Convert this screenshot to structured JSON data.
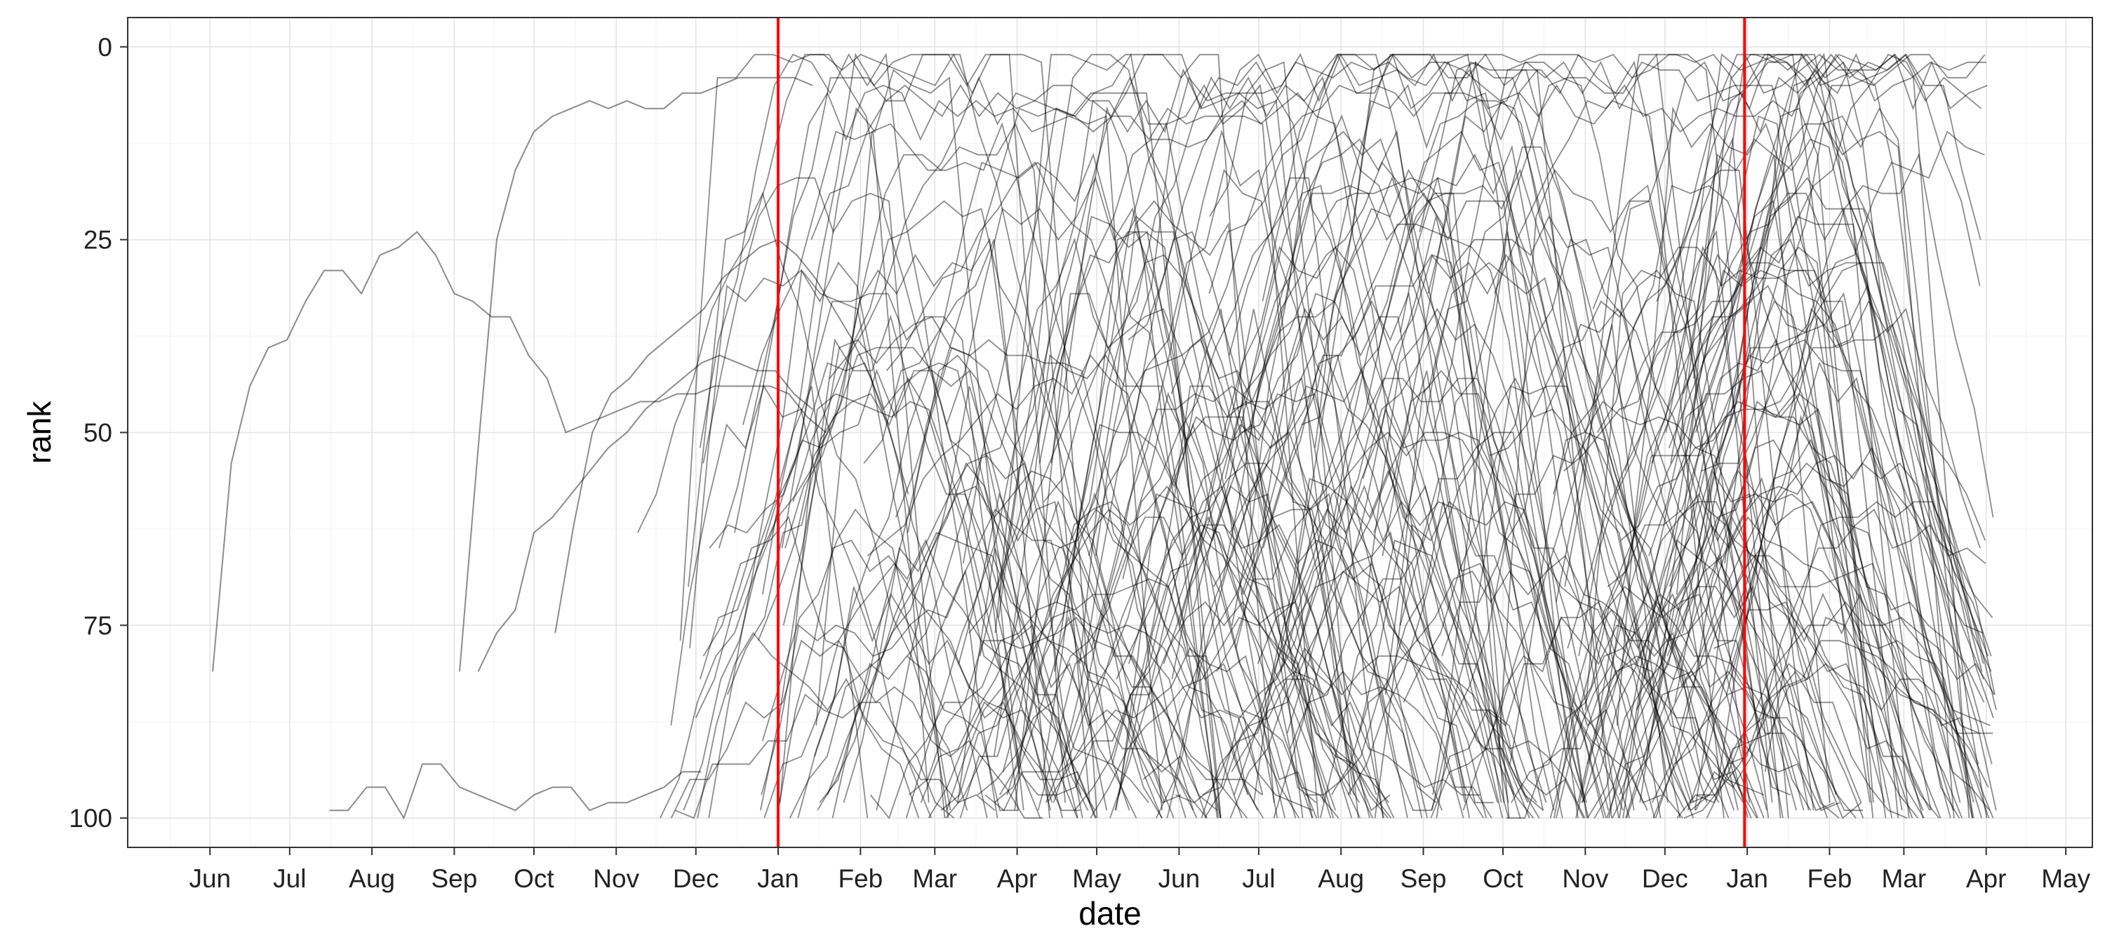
{
  "chart_data": {
    "type": "line",
    "xlabel": "date",
    "ylabel": "rank",
    "y_reversed": true,
    "ylim": [
      103.8,
      -3.8
    ],
    "xlim": [
      "2013-05-01",
      "2015-05-11"
    ],
    "y_ticks": [
      0,
      25,
      50,
      75,
      100
    ],
    "x_ticks": [
      {
        "label": "Jun",
        "date": "2013-06-01"
      },
      {
        "label": "Jul",
        "date": "2013-07-01"
      },
      {
        "label": "Aug",
        "date": "2013-08-01"
      },
      {
        "label": "Sep",
        "date": "2013-09-01"
      },
      {
        "label": "Oct",
        "date": "2013-10-01"
      },
      {
        "label": "Nov",
        "date": "2013-11-01"
      },
      {
        "label": "Dec",
        "date": "2013-12-01"
      },
      {
        "label": "Jan",
        "date": "2014-01-01"
      },
      {
        "label": "Feb",
        "date": "2014-02-01"
      },
      {
        "label": "Mar",
        "date": "2014-03-01"
      },
      {
        "label": "Apr",
        "date": "2014-04-01"
      },
      {
        "label": "May",
        "date": "2014-05-01"
      },
      {
        "label": "Jun",
        "date": "2014-06-01"
      },
      {
        "label": "Jul",
        "date": "2014-07-01"
      },
      {
        "label": "Aug",
        "date": "2014-08-01"
      },
      {
        "label": "Sep",
        "date": "2014-09-01"
      },
      {
        "label": "Oct",
        "date": "2014-10-01"
      },
      {
        "label": "Nov",
        "date": "2014-11-01"
      },
      {
        "label": "Dec",
        "date": "2014-12-01"
      },
      {
        "label": "Jan",
        "date": "2015-01-01"
      },
      {
        "label": "Feb",
        "date": "2015-02-01"
      },
      {
        "label": "Mar",
        "date": "2015-03-01"
      },
      {
        "label": "Apr",
        "date": "2015-04-01"
      },
      {
        "label": "May",
        "date": "2015-05-01"
      }
    ],
    "reference_lines": [
      {
        "x": "2014-01-01",
        "color": "#ff0000"
      },
      {
        "x": "2014-12-31",
        "color": "#ff0000"
      }
    ],
    "series_color": "#000000",
    "series_opacity": 0.45,
    "grid": true,
    "series": [
      {
        "x": [
          "2013-06-02",
          "2013-06-09",
          "2013-06-16",
          "2013-06-23",
          "2013-06-30",
          "2013-07-07",
          "2013-07-14",
          "2013-07-21",
          "2013-07-28",
          "2013-08-04",
          "2013-08-11",
          "2013-08-18",
          "2013-08-25",
          "2013-09-01",
          "2013-09-08",
          "2013-09-15",
          "2013-09-22",
          "2013-09-29",
          "2013-10-06",
          "2013-10-13",
          "2013-10-20",
          "2013-10-27",
          "2013-11-03",
          "2013-11-10",
          "2013-11-17",
          "2013-11-24",
          "2013-12-01",
          "2013-12-08",
          "2013-12-15",
          "2013-12-22",
          "2013-12-29",
          "2014-01-05",
          "2014-01-12",
          "2014-01-19"
        ],
        "y": [
          81,
          54,
          44,
          39,
          38,
          33,
          29,
          29,
          32,
          27,
          26,
          24,
          27,
          32,
          33,
          35,
          35,
          40,
          43,
          50,
          49,
          48,
          47,
          46,
          46,
          45,
          45,
          44,
          44,
          44,
          44,
          45,
          48,
          50
        ]
      },
      {
        "x": [
          "2013-07-16",
          "2013-07-23",
          "2013-07-30",
          "2013-08-06",
          "2013-08-13",
          "2013-08-20",
          "2013-08-27",
          "2013-09-03",
          "2013-09-10",
          "2013-09-17",
          "2013-09-24",
          "2013-10-01",
          "2013-10-08",
          "2013-10-15",
          "2013-10-22",
          "2013-10-29",
          "2013-11-05",
          "2013-11-12",
          "2013-11-19",
          "2013-11-26",
          "2013-12-03"
        ],
        "y": [
          99,
          99,
          96,
          96,
          100,
          93,
          93,
          96,
          97,
          98,
          99,
          97,
          96,
          96,
          99,
          98,
          98,
          97,
          96,
          94,
          94
        ]
      },
      {
        "x": [
          "2013-09-03",
          "2013-09-10",
          "2013-09-17",
          "2013-09-24",
          "2013-10-01",
          "2013-10-08",
          "2013-10-15",
          "2013-10-22",
          "2013-10-29",
          "2013-11-05",
          "2013-11-12",
          "2013-11-19",
          "2013-11-26",
          "2013-12-03",
          "2013-12-10",
          "2013-12-17",
          "2013-12-24",
          "2013-12-31",
          "2014-01-07",
          "2014-01-14"
        ],
        "y": [
          81,
          52,
          25,
          16,
          11,
          9,
          8,
          7,
          8,
          7,
          8,
          8,
          6,
          6,
          5,
          4,
          4,
          4,
          4,
          5
        ]
      },
      {
        "x": [
          "2013-09-10",
          "2013-09-17",
          "2013-09-24",
          "2013-10-01",
          "2013-10-08",
          "2013-10-15",
          "2013-10-22",
          "2013-10-29",
          "2013-11-05",
          "2013-11-12",
          "2013-11-19",
          "2013-11-26",
          "2013-12-03",
          "2013-12-10",
          "2013-12-17",
          "2013-12-24",
          "2013-12-31",
          "2014-01-07",
          "2014-01-14"
        ],
        "y": [
          81,
          76,
          73,
          63,
          61,
          58,
          55,
          52,
          50,
          47,
          45,
          43,
          41,
          40,
          41,
          42,
          42,
          45,
          47
        ]
      },
      {
        "x": [
          "2013-10-09",
          "2013-10-16",
          "2013-10-23",
          "2013-10-30",
          "2013-11-06",
          "2013-11-13",
          "2013-11-20",
          "2013-11-27",
          "2013-12-04",
          "2013-12-11",
          "2013-12-18",
          "2013-12-25",
          "2014-01-01",
          "2014-01-08",
          "2014-01-15",
          "2014-01-22",
          "2014-01-29",
          "2014-02-05",
          "2014-02-12",
          "2014-02-19"
        ],
        "y": [
          76,
          62,
          50,
          45,
          43,
          40,
          38,
          36,
          34,
          30,
          28,
          26,
          25,
          27,
          30,
          34,
          38,
          43,
          50,
          58
        ]
      }
    ],
    "clutter_series_count": 260
  }
}
